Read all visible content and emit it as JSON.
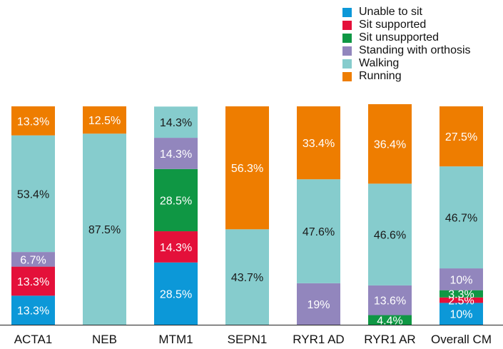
{
  "chart_data": {
    "type": "bar",
    "stacked": true,
    "percent": true,
    "categories": [
      "ACTA1",
      "NEB",
      "MTM1",
      "SEPN1",
      "RYR1 AD",
      "RYR1 AR",
      "Overall CM"
    ],
    "series": [
      {
        "name": "Unable to sit",
        "color": "#0c98d8",
        "values": [
          13.3,
          0,
          28.5,
          0,
          0,
          0,
          10
        ],
        "labels": [
          "13.3%",
          "",
          "28.5%",
          "",
          "",
          "",
          "10%"
        ]
      },
      {
        "name": "Sit supported",
        "color": "#e4103a",
        "values": [
          13.3,
          0,
          14.3,
          0,
          0,
          0,
          2.5
        ],
        "labels": [
          "13.3%",
          "",
          "14.3%",
          "",
          "",
          "",
          "2.5%"
        ]
      },
      {
        "name": "Sit unsupported",
        "color": "#0f9744",
        "values": [
          0,
          0,
          28.5,
          0,
          0,
          4.4,
          3.3
        ],
        "labels": [
          "",
          "",
          "28.5%",
          "",
          "",
          "4.4%",
          "3.3%"
        ]
      },
      {
        "name": "Standing with orthosis",
        "color": "#9286bd",
        "values": [
          6.7,
          0,
          14.3,
          0,
          19,
          13.6,
          10
        ],
        "labels": [
          "6.7%",
          "",
          "14.3%",
          "",
          "19%",
          "13.6%",
          "10%"
        ]
      },
      {
        "name": "Walking",
        "color": "#86cccd",
        "values": [
          53.4,
          87.5,
          14.3,
          43.7,
          47.6,
          46.6,
          46.7
        ],
        "labels": [
          "53.4%",
          "87.5%",
          "14.3%",
          "43.7%",
          "47.6%",
          "46.6%",
          "46.7%"
        ]
      },
      {
        "name": "Running",
        "color": "#ee7d00",
        "values": [
          13.3,
          12.5,
          0,
          56.3,
          33.4,
          36.4,
          27.5
        ],
        "labels": [
          "13.3%",
          "12.5%",
          "",
          "56.3%",
          "33.4%",
          "36.4%",
          "27.5%"
        ]
      }
    ],
    "ylim": [
      0,
      100
    ],
    "legend_position": "top-right",
    "grid": false
  }
}
